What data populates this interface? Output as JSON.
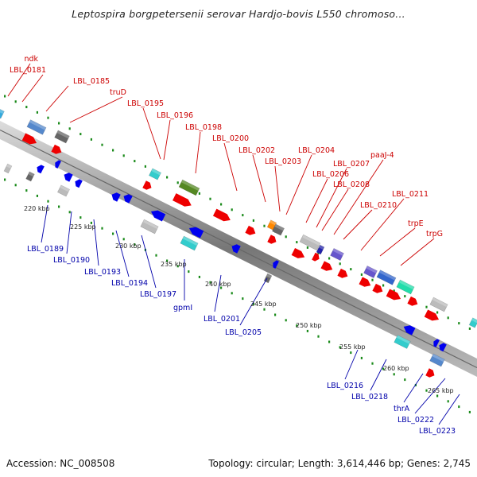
{
  "title": "Leptospira borgpetersenii serovar Hardjo-bovis L550 chromoso...",
  "footer": {
    "accession": "Accession: NC_008508",
    "topology": "Topology: circular; Length: 3,614,446 bp; Genes: 2,745"
  },
  "colors": {
    "label_top": "#cc0000",
    "label_bottom": "#0000aa",
    "tick_dots": "#1a8a1a",
    "forward_gene": "#ee0000",
    "reverse_gene": "#0000ee",
    "backbone": "#999999"
  },
  "ticks": [
    "220 kbp",
    "225 kbp",
    "230 kbp",
    "235 kbp",
    "240 kbp",
    "245 kbp",
    "250 kbp",
    "255 kbp",
    "260 kbp",
    "265 kbp"
  ],
  "top_labels": [
    "ndk",
    "LBL_0181",
    "LBL_0185",
    "truD",
    "LBL_0195",
    "LBL_0196",
    "LBL_0198",
    "LBL_0200",
    "LBL_0202",
    "LBL_0203",
    "LBL_0204",
    "LBL_0206",
    "LBL_0207",
    "LBL_0208",
    "paaJ-4",
    "LBL_0210",
    "LBL_0211",
    "trpE",
    "trpG"
  ],
  "bottom_labels": [
    "LBL_0189",
    "LBL_0190",
    "LBL_0193",
    "LBL_0194",
    "LBL_0197",
    "gpmI",
    "LBL_0201",
    "LBL_0205",
    "LBL_0216",
    "LBL_0218",
    "thrA",
    "LBL_0222",
    "LBL_0223"
  ]
}
